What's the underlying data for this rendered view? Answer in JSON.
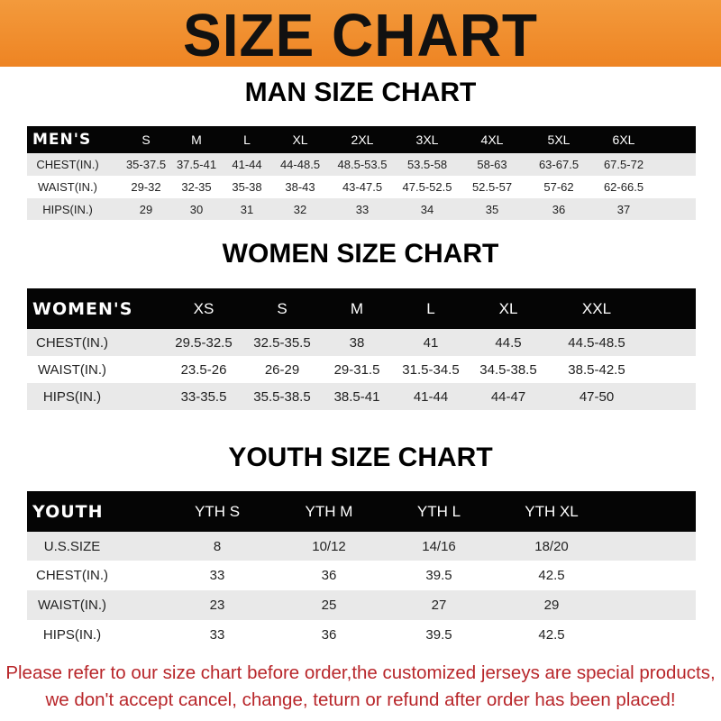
{
  "banner": {
    "title": "SIZE CHART",
    "color": "#ef8a2c"
  },
  "men": {
    "title": "MAN SIZE CHART",
    "header": [
      "MEN'S",
      "S",
      "M",
      "L",
      "XL",
      "2XL",
      "3XL",
      "4XL",
      "5XL",
      "6XL"
    ],
    "rows": [
      [
        "CHEST(IN.)",
        "35-37.5",
        "37.5-41",
        "41-44",
        "44-48.5",
        "48.5-53.5",
        "53.5-58",
        "58-63",
        "63-67.5",
        "67.5-72"
      ],
      [
        "WAIST(IN.)",
        "29-32",
        "32-35",
        "35-38",
        "38-43",
        "43-47.5",
        "47.5-52.5",
        "52.5-57",
        "57-62",
        "62-66.5"
      ],
      [
        "HIPS(IN.)",
        "29",
        "30",
        "31",
        "32",
        "33",
        "34",
        "35",
        "36",
        "37"
      ]
    ]
  },
  "women": {
    "title": "WOMEN SIZE CHART",
    "header": [
      "WOMEN'S",
      "XS",
      "S",
      "M",
      "L",
      "XL",
      "XXL"
    ],
    "rows": [
      [
        "CHEST(IN.)",
        "29.5-32.5",
        "32.5-35.5",
        "38",
        "41",
        "44.5",
        "44.5-48.5"
      ],
      [
        "WAIST(IN.)",
        "23.5-26",
        "26-29",
        "29-31.5",
        "31.5-34.5",
        "34.5-38.5",
        "38.5-42.5"
      ],
      [
        "HIPS(IN.)",
        "33-35.5",
        "35.5-38.5",
        "38.5-41",
        "41-44",
        "44-47",
        "47-50"
      ]
    ]
  },
  "youth": {
    "title": "YOUTH SIZE CHART",
    "header": [
      "YOUTH",
      "YTH S",
      "YTH M",
      "YTH L",
      "YTH XL"
    ],
    "rows": [
      [
        "U.S.SIZE",
        "8",
        "10/12",
        "14/16",
        "18/20"
      ],
      [
        "CHEST(IN.)",
        "33",
        "36",
        "39.5",
        "42.5"
      ],
      [
        "WAIST(IN.)",
        "23",
        "25",
        "27",
        "29"
      ],
      [
        "HIPS(IN.)",
        "33",
        "36",
        "39.5",
        "42.5"
      ]
    ]
  },
  "footer": {
    "line1": "Please refer to our size chart before order,the customized jerseys are special products,",
    "line2": "we don't accept cancel, change, teturn or refund after order has been placed!",
    "color": "#b8262a"
  }
}
